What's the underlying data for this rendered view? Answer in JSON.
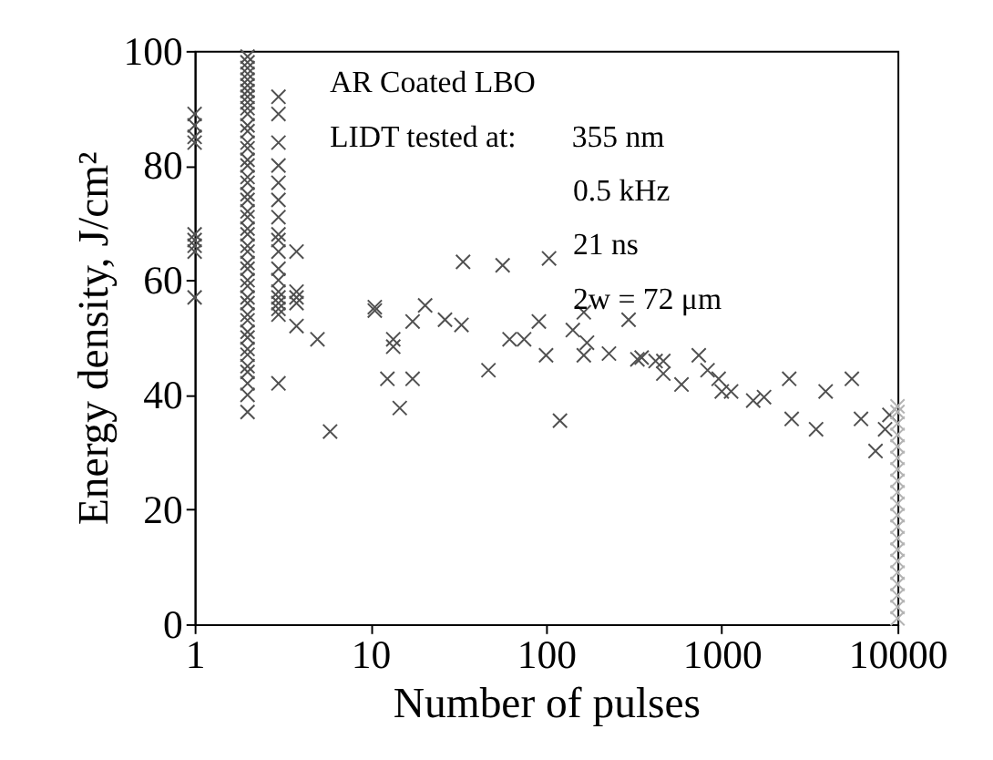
{
  "chart_data": {
    "type": "scatter",
    "xlabel": "Number of pulses",
    "ylabel": "Energy density, J/cm²",
    "annotations": [
      "AR Coated LBO",
      "LIDT tested at:",
      "355 nm",
      "0.5 kHz",
      "21 ns",
      "2w = 72 μm"
    ],
    "xlim": [
      1,
      10000
    ],
    "xticks": [
      1,
      10,
      100,
      1000,
      10000
    ],
    "ylim": [
      0,
      100
    ],
    "yticks": [
      0,
      20,
      40,
      60,
      80,
      100
    ],
    "log": "x",
    "grid": false,
    "marker": "cross",
    "series": [
      {
        "color": "#505050",
        "x": [
          1,
          1,
          1,
          1,
          1,
          1,
          1,
          1,
          1,
          2,
          2,
          2,
          2,
          2,
          2,
          2,
          2,
          2,
          2,
          2,
          2,
          2,
          2,
          2,
          2,
          2,
          2,
          2,
          2,
          2,
          2,
          2,
          2,
          2,
          2,
          2,
          2,
          2,
          2,
          2,
          2,
          2,
          2,
          2,
          2,
          2,
          2,
          2,
          2,
          2,
          2,
          2,
          2,
          3,
          3,
          3,
          3,
          3,
          3,
          3,
          3,
          3,
          3,
          3,
          3,
          3,
          3,
          3,
          3,
          3,
          3,
          3.8,
          3.8,
          3.8,
          3.8,
          3.8,
          5.0,
          5.9,
          10.6,
          10.6,
          13.5,
          13.5,
          12.5,
          17.4,
          14.7,
          17.4,
          20.5,
          26.6,
          33,
          33.7,
          56.6,
          104,
          47,
          62,
          75,
          91,
          100,
          120,
          142,
          164,
          171,
          164,
          228,
          295,
          331,
          420,
          465,
          350,
          465,
          590,
          740,
          830,
          960,
          1000,
          1130,
          1510,
          1740,
          2420,
          2500,
          3440,
          3900,
          5500,
          6200,
          7500,
          8500,
          9000
        ],
        "values": [
          89,
          87,
          85,
          84,
          68,
          67,
          66,
          65,
          57,
          37,
          40,
          42,
          44,
          45,
          47,
          48,
          50,
          51,
          53,
          54,
          56,
          57,
          59,
          60,
          62,
          63,
          65,
          66,
          68,
          69,
          71,
          72,
          74,
          75,
          77,
          78,
          80,
          81,
          83,
          84,
          86,
          87,
          89,
          90,
          91,
          92,
          93,
          94,
          95,
          96,
          97,
          98,
          99,
          92,
          89,
          84,
          80,
          77,
          74,
          71,
          68,
          67,
          65,
          62,
          60,
          58,
          57,
          56,
          55,
          54,
          42,
          65,
          58,
          57,
          56,
          52,
          49.7,
          33.6,
          55.3,
          54.7,
          49.7,
          48.4,
          42.8,
          42.8,
          37.7,
          52.8,
          55.6,
          53.1,
          52.2,
          63.2,
          62.6,
          63.8,
          44.3,
          49.7,
          49.7,
          52.8,
          46.9,
          35.5,
          51.3,
          54.4,
          49.1,
          46.9,
          47.2,
          53.1,
          46.2,
          45.9,
          43.7,
          46.5,
          45.9,
          41.8,
          46.9,
          44.3,
          42.8,
          40.6,
          40.6,
          39.0,
          39.6,
          42.8,
          35.8,
          34.0,
          40.6,
          42.8,
          35.8,
          30.2,
          34,
          36.5
        ]
      },
      {
        "color": "#b4b4b4",
        "x": [
          10000,
          10000,
          10000,
          10000,
          10000,
          10000,
          10000,
          10000,
          10000,
          10000,
          10000,
          10000,
          10000,
          10000,
          10000,
          10000,
          10000,
          10000,
          10000,
          10000
        ],
        "values": [
          1,
          3,
          5,
          7,
          9,
          11,
          13,
          15,
          17,
          19,
          21,
          23,
          25,
          27,
          29,
          31,
          33,
          35,
          37,
          38
        ]
      }
    ]
  }
}
